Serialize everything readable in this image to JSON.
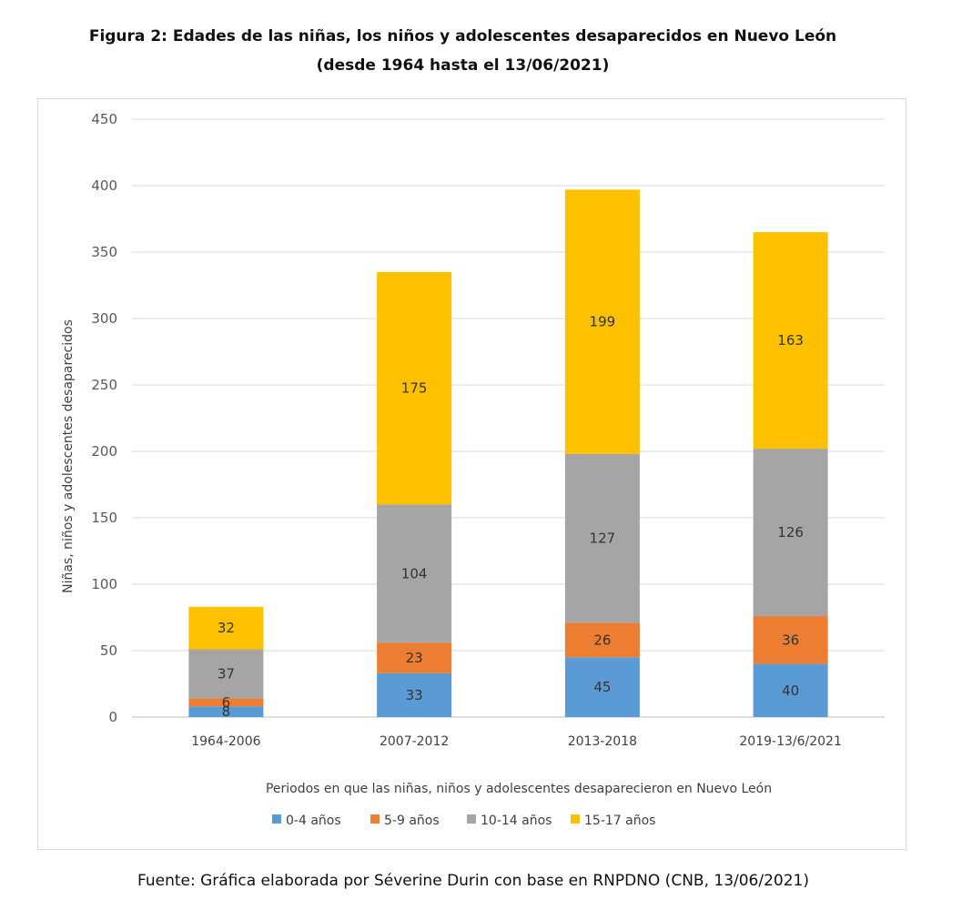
{
  "title_line1": "Figura 2: Edades de las niñas, los niños y adolescentes desaparecidos en Nuevo León",
  "title_line2": "(desde 1964 hasta el 13/06/2021)",
  "source": "Fuente: Gráfica elaborada por Séverine Durin con base en RNPDNO (CNB, 13/06/2021)",
  "chart_data": {
    "type": "bar",
    "stacked": true,
    "title": "Figura 2: Edades de las niñas, los niños y adolescentes desaparecidos en Nuevo León (desde 1964 hasta el 13/06/2021)",
    "xlabel": "Periodos en que las niñas, niños y adolescentes desaparecieron en Nuevo León",
    "ylabel": "Niñas, niños y adolescentes desaparecidos",
    "ylim": [
      0,
      450
    ],
    "yticks": [
      0,
      50,
      100,
      150,
      200,
      250,
      300,
      350,
      400,
      450
    ],
    "grid": true,
    "legend_position": "bottom",
    "categories": [
      "1964-2006",
      "2007-2012",
      "2013-2018",
      "2019-13/6/2021"
    ],
    "series": [
      {
        "name": "0-4 años",
        "color": "#5B9BD5",
        "values": [
          8,
          33,
          45,
          40
        ]
      },
      {
        "name": "5-9 años",
        "color": "#ED7D31",
        "values": [
          6,
          23,
          26,
          36
        ]
      },
      {
        "name": "10-14 años",
        "color": "#A5A5A5",
        "values": [
          37,
          104,
          127,
          126
        ]
      },
      {
        "name": "15-17 años",
        "color": "#FFC000",
        "values": [
          32,
          175,
          199,
          163
        ]
      }
    ]
  }
}
